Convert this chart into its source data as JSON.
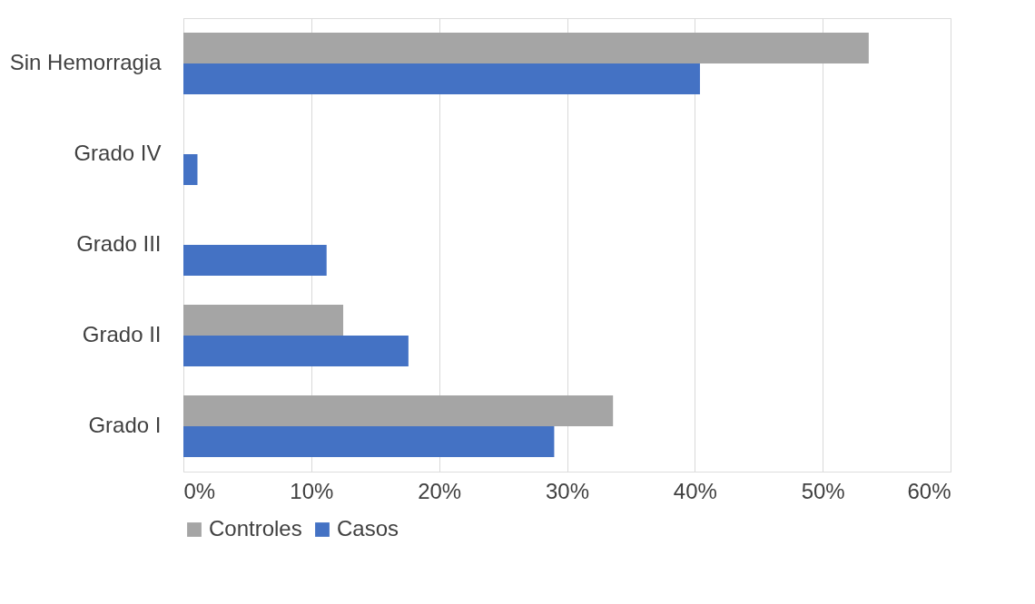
{
  "chart_data": {
    "type": "bar",
    "orientation": "horizontal",
    "categories": [
      "Sin Hemorragia",
      "Grado IV",
      "Grado III",
      "Grado II",
      "Grado I"
    ],
    "series": [
      {
        "name": "Controles",
        "color": "#a5a5a5",
        "values": [
          53.6,
          0,
          0,
          12.5,
          33.6
        ]
      },
      {
        "name": "Casos",
        "color": "#4472c4",
        "values": [
          40.4,
          1.1,
          11.2,
          17.6,
          29.0
        ]
      }
    ],
    "xlim": [
      0,
      60
    ],
    "xticks": [
      {
        "value": 0,
        "label": "0%"
      },
      {
        "value": 10,
        "label": "10%"
      },
      {
        "value": 20,
        "label": "20%"
      },
      {
        "value": 30,
        "label": "30%"
      },
      {
        "value": 40,
        "label": "40%"
      },
      {
        "value": 50,
        "label": "50%"
      },
      {
        "value": 60,
        "label": "60%"
      }
    ],
    "grid": "x",
    "legend": "bottom"
  }
}
